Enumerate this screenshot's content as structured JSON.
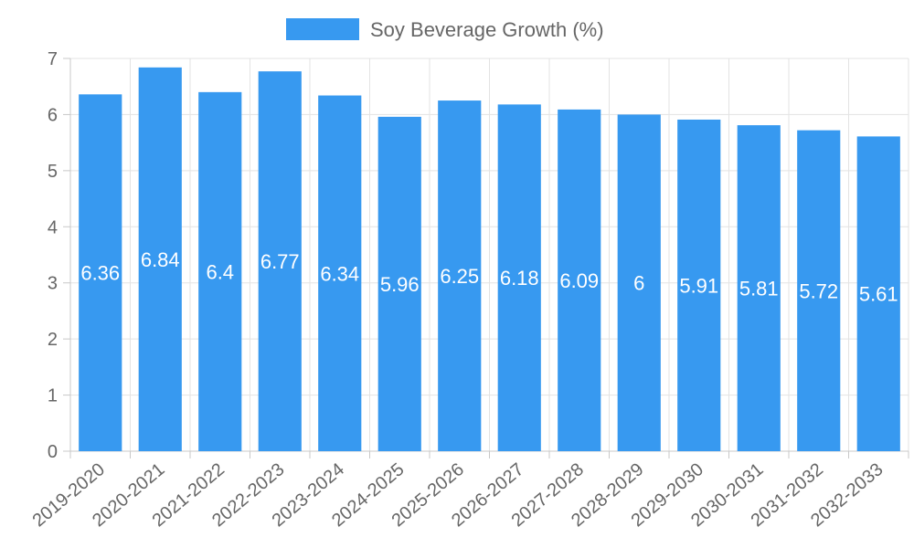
{
  "chart_data": {
    "type": "bar",
    "categories": [
      "2019-2020",
      "2020-2021",
      "2021-2022",
      "2022-2023",
      "2023-2024",
      "2024-2025",
      "2025-2026",
      "2026-2027",
      "2027-2028",
      "2028-2029",
      "2029-2030",
      "2030-2031",
      "2031-2032",
      "2032-2033"
    ],
    "series": [
      {
        "name": "Soy Beverage Growth (%)",
        "values": [
          6.36,
          6.84,
          6.4,
          6.77,
          6.34,
          5.96,
          6.25,
          6.18,
          6.09,
          6,
          5.91,
          5.81,
          5.72,
          5.61
        ],
        "color": "#3799f0"
      }
    ],
    "y_ticks": [
      "0",
      "1",
      "2",
      "3",
      "4",
      "5",
      "6",
      "7"
    ],
    "ylim": [
      0,
      7
    ],
    "grid": true,
    "legend_position": "top-center",
    "title": "",
    "xlabel": "",
    "ylabel": ""
  }
}
